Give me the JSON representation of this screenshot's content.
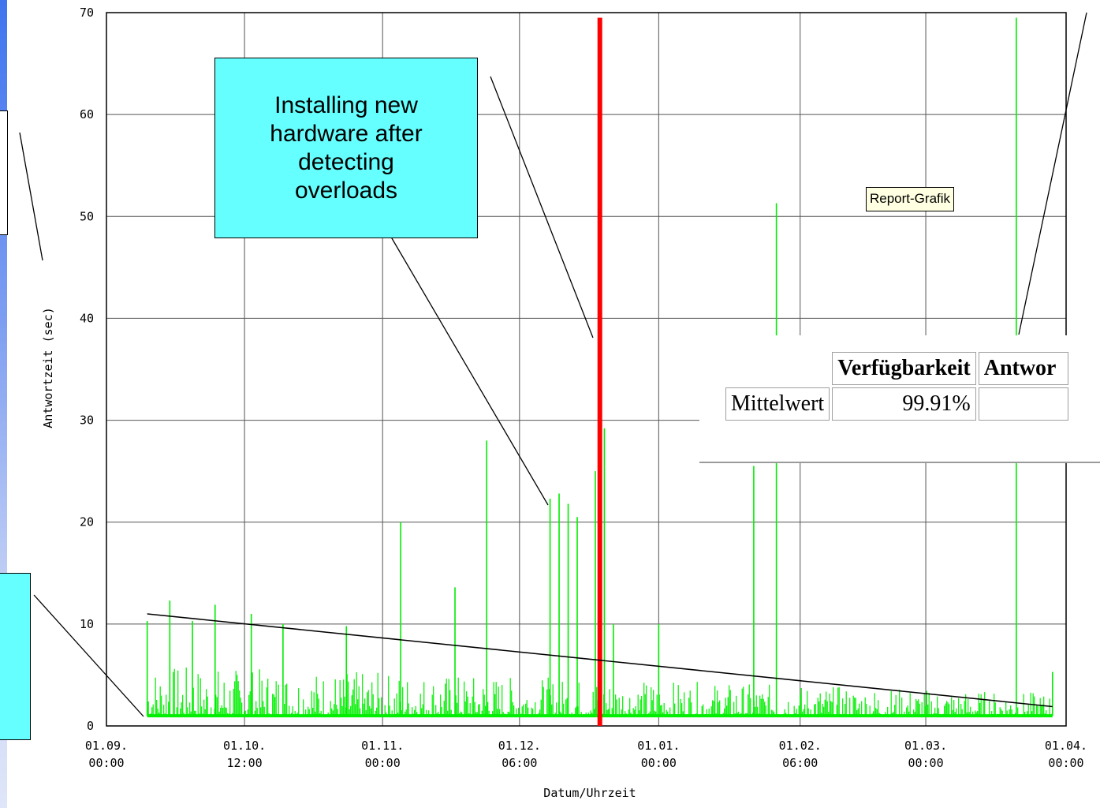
{
  "colors": {
    "series": "#00ee00",
    "event_marker": "#ff0000",
    "grid": "#555555",
    "callout_fill": "#66ffff",
    "tooltip_fill": "#ffffe1",
    "left_strip_top": "#3f74ef"
  },
  "chart_data": {
    "type": "line",
    "title": "",
    "xlabel": "Datum/Uhrzeit",
    "ylabel": "Antwortzeit (sec)",
    "ylim": [
      0,
      70
    ],
    "yticks": [
      0,
      10,
      20,
      30,
      40,
      50,
      60,
      70
    ],
    "xticks": [
      {
        "label_line1": "01.09.",
        "label_line2": "00:00"
      },
      {
        "label_line1": "01.10.",
        "label_line2": "12:00"
      },
      {
        "label_line1": "01.11.",
        "label_line2": "00:00"
      },
      {
        "label_line1": "01.12.",
        "label_line2": "06:00"
      },
      {
        "label_line1": "01.01.",
        "label_line2": "00:00"
      },
      {
        "label_line1": "01.02.",
        "label_line2": "06:00"
      },
      {
        "label_line1": "01.03.",
        "label_line2": "00:00"
      },
      {
        "label_line1": "01.04.",
        "label_line2": "00:00"
      }
    ],
    "grid": true,
    "legend": "none",
    "series": [
      {
        "peaks": [
          {
            "x": "10.09.",
            "y": 10.3
          },
          {
            "x": "15.09.",
            "y": 12.3
          },
          {
            "x": "20.09.",
            "y": 10.3
          },
          {
            "x": "25.09.",
            "y": 11.9
          },
          {
            "x": "03.10.",
            "y": 11.0
          },
          {
            "x": "10.10.",
            "y": 10.0
          },
          {
            "x": "24.10.",
            "y": 9.8
          },
          {
            "x": "05.11.",
            "y": 20.0
          },
          {
            "x": "17.11.",
            "y": 13.6
          },
          {
            "x": "24.11.",
            "y": 28.0
          },
          {
            "x": "08.12.",
            "y": 22.3
          },
          {
            "x": "10.12.",
            "y": 22.8
          },
          {
            "x": "12.12.",
            "y": 21.8
          },
          {
            "x": "14.12.",
            "y": 20.5
          },
          {
            "x": "18.12.",
            "y": 25.0
          },
          {
            "x": "20.12.",
            "y": 29.2
          },
          {
            "x": "22.12.",
            "y": 10.0
          },
          {
            "x": "01.01.",
            "y": 10.0
          },
          {
            "x": "22.01.",
            "y": 25.5
          },
          {
            "x": "27.01.",
            "y": 51.3
          },
          {
            "x": "21.03.",
            "y": 69.5
          },
          {
            "x": "29.03.",
            "y": 5.3
          }
        ],
        "baseline": 1.0,
        "typical_noise_max": 5
      }
    ],
    "event_marker": {
      "x": "19.12.",
      "y_top": 69.5
    },
    "trend_line": {
      "x_start": "10.09.",
      "y_start": 11.0,
      "x_end": "29.03.",
      "y_end": 1.9
    },
    "annotations": [
      "Installing new hardware after detecting overloads"
    ]
  },
  "callout": {
    "text_lines": [
      "Installing new",
      "hardware after",
      "detecting",
      "overloads"
    ]
  },
  "tooltip": {
    "text": "Report-Grafik"
  },
  "stats_table": {
    "header": [
      "",
      "Verfügbarkeit",
      "Antwor"
    ],
    "row": [
      "Mittelwert",
      "99.91%",
      ""
    ]
  }
}
